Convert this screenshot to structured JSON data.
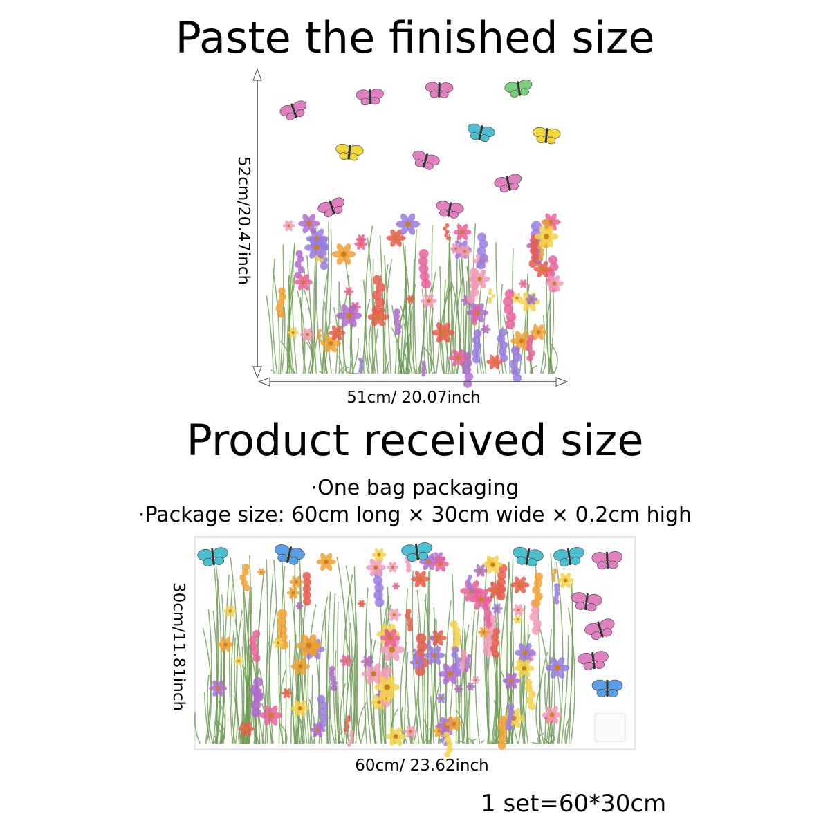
{
  "finished": {
    "title": "Paste the finished size",
    "height_label": "52cm/20.47inch",
    "width_label": "51cm/ 20.07inch"
  },
  "received": {
    "title": "Product received size",
    "packaging": "·One bag packaging",
    "package_size": "·Package size: 60cm long × 30cm wide × 0.2cm high",
    "height_label": "30cm/11.81inch",
    "width_label": "60cm/ 23.62inch"
  },
  "set_label": "1 set=60*30cm",
  "palette": {
    "flowers": [
      "#e8609a",
      "#b06ad0",
      "#f0a030",
      "#f4d24a",
      "#e85a4a",
      "#9a7ae0",
      "#f29ab8",
      "#ffffff"
    ],
    "butterflies": [
      "#4cc0d0",
      "#f07a50",
      "#f2d83a",
      "#5a9ee8",
      "#e080c0",
      "#7ad07a"
    ],
    "stem": "#6a9a50"
  }
}
